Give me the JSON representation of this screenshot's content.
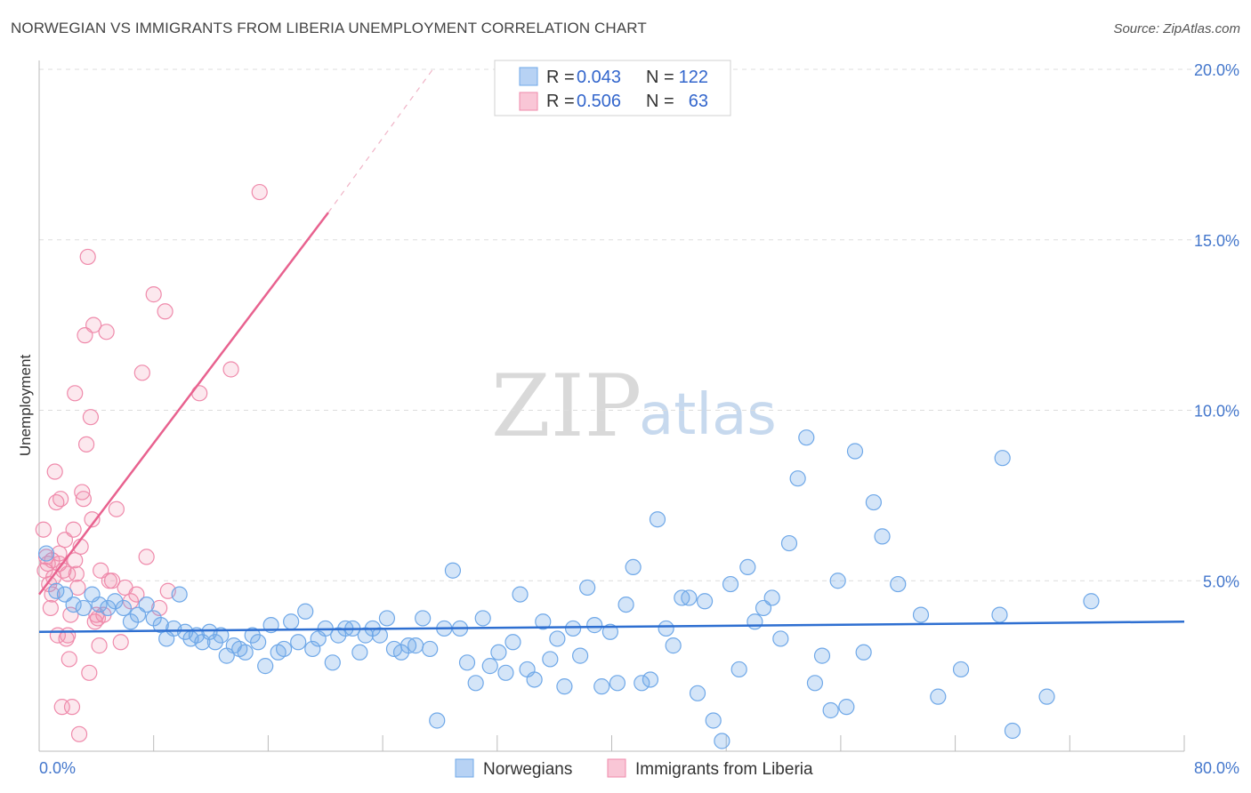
{
  "header": {
    "title": "NORWEGIAN VS IMMIGRANTS FROM LIBERIA UNEMPLOYMENT CORRELATION CHART",
    "source": "Source: ZipAtlas.com"
  },
  "watermark": {
    "zip": "ZIP",
    "atlas": "atlas"
  },
  "colors": {
    "blue": "#6fa8e8",
    "blue_line": "#2e6fd1",
    "pink": "#ef8aab",
    "pink_line": "#e8628f",
    "tick": "#4477cc"
  },
  "legend": {
    "r_label": "R =",
    "n_label": "N =",
    "series": [
      {
        "r": "0.043",
        "n": "122"
      },
      {
        "r": "0.506",
        "n": "63"
      }
    ]
  },
  "chart_data": {
    "type": "scatter",
    "title": "NORWEGIAN VS IMMIGRANTS FROM LIBERIA UNEMPLOYMENT CORRELATION CHART",
    "xlabel": "",
    "ylabel": "Unemployment",
    "xlim": [
      0,
      80
    ],
    "ylim": [
      0,
      20
    ],
    "x_tick_labels": [
      "0.0%",
      "80.0%"
    ],
    "y_ticks": [
      5,
      10,
      15,
      20
    ],
    "y_tick_labels": [
      "5.0%",
      "10.0%",
      "15.0%",
      "20.0%"
    ],
    "grid": true,
    "series": [
      {
        "name": "Norwegians",
        "trend": {
          "x0": 0,
          "y0": 3.5,
          "x1": 80,
          "y1": 3.8
        },
        "points": [
          [
            0.5,
            5.8
          ],
          [
            1.2,
            4.7
          ],
          [
            1.8,
            4.6
          ],
          [
            2.4,
            4.3
          ],
          [
            3.1,
            4.2
          ],
          [
            3.7,
            4.6
          ],
          [
            4.2,
            4.3
          ],
          [
            4.8,
            4.2
          ],
          [
            5.3,
            4.4
          ],
          [
            5.9,
            4.2
          ],
          [
            6.4,
            3.8
          ],
          [
            6.9,
            4.0
          ],
          [
            7.5,
            4.3
          ],
          [
            8.0,
            3.9
          ],
          [
            8.5,
            3.7
          ],
          [
            8.9,
            3.3
          ],
          [
            9.4,
            3.6
          ],
          [
            9.8,
            4.6
          ],
          [
            10.2,
            3.5
          ],
          [
            10.6,
            3.3
          ],
          [
            11.0,
            3.4
          ],
          [
            11.4,
            3.2
          ],
          [
            11.9,
            3.5
          ],
          [
            12.3,
            3.2
          ],
          [
            12.7,
            3.4
          ],
          [
            13.1,
            2.8
          ],
          [
            13.6,
            3.1
          ],
          [
            14.0,
            3.0
          ],
          [
            14.4,
            2.9
          ],
          [
            14.9,
            3.4
          ],
          [
            15.3,
            3.2
          ],
          [
            15.8,
            2.5
          ],
          [
            16.2,
            3.7
          ],
          [
            16.7,
            2.9
          ],
          [
            17.1,
            3.0
          ],
          [
            17.6,
            3.8
          ],
          [
            18.1,
            3.2
          ],
          [
            18.6,
            4.1
          ],
          [
            19.1,
            3.0
          ],
          [
            19.5,
            3.3
          ],
          [
            20.0,
            3.6
          ],
          [
            20.5,
            2.6
          ],
          [
            20.9,
            3.4
          ],
          [
            21.4,
            3.6
          ],
          [
            21.9,
            3.6
          ],
          [
            22.4,
            2.9
          ],
          [
            22.8,
            3.4
          ],
          [
            23.3,
            3.6
          ],
          [
            23.8,
            3.4
          ],
          [
            24.3,
            3.9
          ],
          [
            24.8,
            3.0
          ],
          [
            25.3,
            2.9
          ],
          [
            25.8,
            3.1
          ],
          [
            26.3,
            3.1
          ],
          [
            26.8,
            3.9
          ],
          [
            27.3,
            3.0
          ],
          [
            27.8,
            0.9
          ],
          [
            28.3,
            3.6
          ],
          [
            28.9,
            5.3
          ],
          [
            29.4,
            3.6
          ],
          [
            29.9,
            2.6
          ],
          [
            30.5,
            2.0
          ],
          [
            31.0,
            3.9
          ],
          [
            31.5,
            2.5
          ],
          [
            32.1,
            2.9
          ],
          [
            32.6,
            2.3
          ],
          [
            33.1,
            3.2
          ],
          [
            33.6,
            4.6
          ],
          [
            34.1,
            2.4
          ],
          [
            34.6,
            2.1
          ],
          [
            35.2,
            3.8
          ],
          [
            35.7,
            2.7
          ],
          [
            36.2,
            3.3
          ],
          [
            36.7,
            1.9
          ],
          [
            37.3,
            3.6
          ],
          [
            37.8,
            2.8
          ],
          [
            38.3,
            4.8
          ],
          [
            38.8,
            3.7
          ],
          [
            39.3,
            1.9
          ],
          [
            39.9,
            3.5
          ],
          [
            40.4,
            2.0
          ],
          [
            41.0,
            4.3
          ],
          [
            41.5,
            5.4
          ],
          [
            42.1,
            2.0
          ],
          [
            42.7,
            2.1
          ],
          [
            43.2,
            6.8
          ],
          [
            43.8,
            3.6
          ],
          [
            44.3,
            3.1
          ],
          [
            44.9,
            4.5
          ],
          [
            45.4,
            4.5
          ],
          [
            46.0,
            1.7
          ],
          [
            46.5,
            4.4
          ],
          [
            47.1,
            0.9
          ],
          [
            47.7,
            0.3
          ],
          [
            48.3,
            4.9
          ],
          [
            48.9,
            2.4
          ],
          [
            49.5,
            5.4
          ],
          [
            50.0,
            3.8
          ],
          [
            50.6,
            4.2
          ],
          [
            51.2,
            4.5
          ],
          [
            51.8,
            3.3
          ],
          [
            52.4,
            6.1
          ],
          [
            53.0,
            8.0
          ],
          [
            53.6,
            9.2
          ],
          [
            54.2,
            2.0
          ],
          [
            54.7,
            2.8
          ],
          [
            55.3,
            1.2
          ],
          [
            55.8,
            5.0
          ],
          [
            56.4,
            1.3
          ],
          [
            57.0,
            8.8
          ],
          [
            57.6,
            2.9
          ],
          [
            58.3,
            7.3
          ],
          [
            58.9,
            6.3
          ],
          [
            60.0,
            4.9
          ],
          [
            61.6,
            4.0
          ],
          [
            62.8,
            1.6
          ],
          [
            64.4,
            2.4
          ],
          [
            67.1,
            4.0
          ],
          [
            67.3,
            8.6
          ],
          [
            68.0,
            0.6
          ],
          [
            70.4,
            1.6
          ],
          [
            73.5,
            4.4
          ]
        ]
      },
      {
        "name": "Immigrants from Liberia",
        "trend": {
          "x0": 0,
          "y0": 4.6,
          "x1": 20.2,
          "y1": 15.8,
          "dash_x1": 27.5,
          "dash_y1": 20.0
        },
        "points": [
          [
            0.3,
            6.5
          ],
          [
            0.4,
            5.3
          ],
          [
            0.5,
            5.7
          ],
          [
            0.6,
            5.5
          ],
          [
            0.7,
            4.9
          ],
          [
            0.8,
            4.2
          ],
          [
            0.9,
            5.6
          ],
          [
            1.0,
            5.1
          ],
          [
            1.1,
            8.2
          ],
          [
            1.2,
            7.3
          ],
          [
            1.3,
            3.4
          ],
          [
            1.4,
            5.5
          ],
          [
            1.5,
            7.4
          ],
          [
            1.6,
            1.3
          ],
          [
            1.7,
            5.3
          ],
          [
            1.8,
            6.2
          ],
          [
            1.9,
            3.3
          ],
          [
            2.0,
            5.2
          ],
          [
            2.1,
            2.7
          ],
          [
            2.2,
            4.0
          ],
          [
            2.3,
            1.3
          ],
          [
            2.4,
            6.5
          ],
          [
            2.5,
            10.5
          ],
          [
            2.6,
            5.2
          ],
          [
            2.7,
            4.8
          ],
          [
            2.8,
            0.5
          ],
          [
            2.9,
            6.0
          ],
          [
            3.0,
            7.6
          ],
          [
            3.1,
            7.4
          ],
          [
            3.2,
            12.2
          ],
          [
            3.3,
            9.0
          ],
          [
            3.4,
            14.5
          ],
          [
            3.5,
            2.3
          ],
          [
            3.6,
            9.8
          ],
          [
            3.7,
            6.8
          ],
          [
            3.8,
            12.5
          ],
          [
            3.9,
            3.8
          ],
          [
            4.0,
            4.0
          ],
          [
            4.1,
            3.9
          ],
          [
            4.2,
            3.1
          ],
          [
            4.3,
            5.3
          ],
          [
            4.5,
            4.0
          ],
          [
            4.7,
            12.3
          ],
          [
            4.9,
            5.0
          ],
          [
            5.1,
            5.0
          ],
          [
            5.4,
            7.1
          ],
          [
            5.7,
            3.2
          ],
          [
            6.0,
            4.8
          ],
          [
            6.4,
            4.4
          ],
          [
            6.8,
            4.6
          ],
          [
            7.2,
            11.1
          ],
          [
            7.5,
            5.7
          ],
          [
            8.0,
            13.4
          ],
          [
            8.4,
            4.2
          ],
          [
            8.8,
            12.9
          ],
          [
            9.0,
            4.7
          ],
          [
            11.2,
            10.5
          ],
          [
            13.4,
            11.2
          ],
          [
            15.4,
            16.4
          ],
          [
            1.4,
            5.8
          ],
          [
            0.9,
            4.6
          ],
          [
            2.0,
            3.4
          ],
          [
            2.5,
            5.6
          ]
        ]
      }
    ]
  },
  "bottom_legend": [
    "Norwegians",
    "Immigrants from Liberia"
  ]
}
